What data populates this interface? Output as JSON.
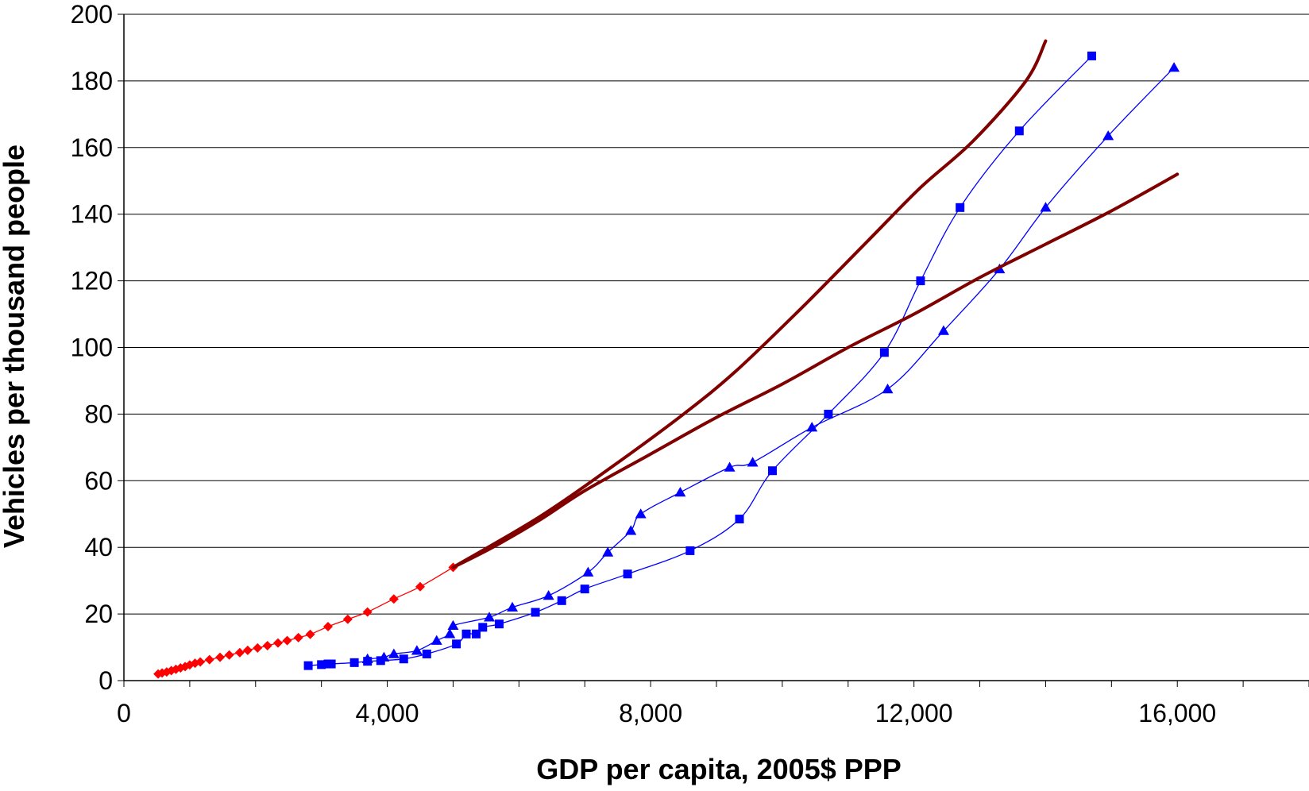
{
  "chart_data": {
    "type": "line",
    "xlabel": "GDP per capita, 2005$ PPP",
    "ylabel": "Vehicles per thousand people",
    "xlim": [
      0,
      18000
    ],
    "ylim": [
      0,
      200
    ],
    "x_ticks": [
      0,
      4000,
      8000,
      12000,
      16000
    ],
    "x_tick_labels": [
      "0",
      "4,000",
      "8,000",
      "12,000",
      "16,000"
    ],
    "x_minor_step": 1000,
    "y_ticks": [
      0,
      20,
      40,
      60,
      80,
      100,
      120,
      140,
      160,
      180,
      200
    ],
    "y_tick_labels": [
      "0",
      "20",
      "40",
      "60",
      "80",
      "100",
      "120",
      "140",
      "160",
      "180",
      "200"
    ],
    "grid": "horizontal",
    "legend": "none",
    "series": [
      {
        "marker": "diamond",
        "color": "#ff0000",
        "x": [
          520,
          580,
          650,
          720,
          790,
          860,
          930,
          1000,
          1080,
          1160,
          1300,
          1460,
          1600,
          1760,
          1880,
          2030,
          2180,
          2340,
          2480,
          2650,
          2830,
          3100,
          3400,
          3700,
          4100,
          4500,
          5000
        ],
        "y": [
          2,
          2.3,
          2.6,
          3,
          3.4,
          3.8,
          4.2,
          4.7,
          5.2,
          5.6,
          6.3,
          7,
          7.7,
          8.4,
          9.1,
          9.8,
          10.5,
          11.3,
          12,
          12.9,
          13.9,
          16.2,
          18.4,
          20.6,
          24.5,
          28.2,
          34
        ]
      },
      {
        "marker": "square",
        "color": "#0000ff",
        "x": [
          2800,
          3000,
          3100,
          3150,
          3500,
          3700,
          3900,
          4250,
          4600,
          5050,
          5200,
          5350,
          5450,
          5700,
          6250,
          6650,
          7000,
          7650,
          8600,
          9350,
          9850,
          10700,
          11550,
          12100,
          12700,
          13600,
          14700
        ],
        "y": [
          4.5,
          4.8,
          5,
          5,
          5.4,
          5.8,
          6,
          6.5,
          8,
          11,
          14,
          14,
          16,
          17,
          20.5,
          24,
          27.5,
          32,
          39,
          48.5,
          63,
          80,
          98.5,
          120,
          142,
          165,
          187.5
        ]
      },
      {
        "marker": "triangle",
        "color": "#0000ff",
        "x": [
          3700,
          3950,
          4100,
          4450,
          4750,
          4950,
          5000,
          5550,
          5900,
          6450,
          7050,
          7350,
          7700,
          7850,
          8450,
          9200,
          9550,
          10450,
          11600,
          12450,
          13300,
          14000,
          14950,
          15950
        ],
        "y": [
          6.5,
          7,
          8,
          9,
          12,
          14,
          16.5,
          19,
          22,
          25.5,
          32.5,
          38.5,
          45,
          50,
          56.5,
          64,
          65.5,
          76,
          87.5,
          105,
          123.5,
          142,
          163.5,
          184
        ]
      },
      {
        "marker": "none",
        "color": "#800000",
        "x": [
          5000,
          6300,
          7400,
          8500,
          9300,
          10300,
          11300,
          12100,
          12900,
          13700,
          14000
        ],
        "y": [
          34,
          49,
          64,
          80,
          93,
          112,
          132,
          148,
          162,
          180,
          192
        ]
      },
      {
        "marker": "none",
        "color": "#800000",
        "x": [
          5000,
          5600,
          6300,
          7000,
          8000,
          9000,
          10000,
          11000,
          12000,
          13000,
          14000,
          15000,
          16000
        ],
        "y": [
          34,
          40,
          48,
          57,
          68,
          79,
          89,
          100,
          110,
          121,
          131,
          141,
          152
        ]
      }
    ]
  }
}
